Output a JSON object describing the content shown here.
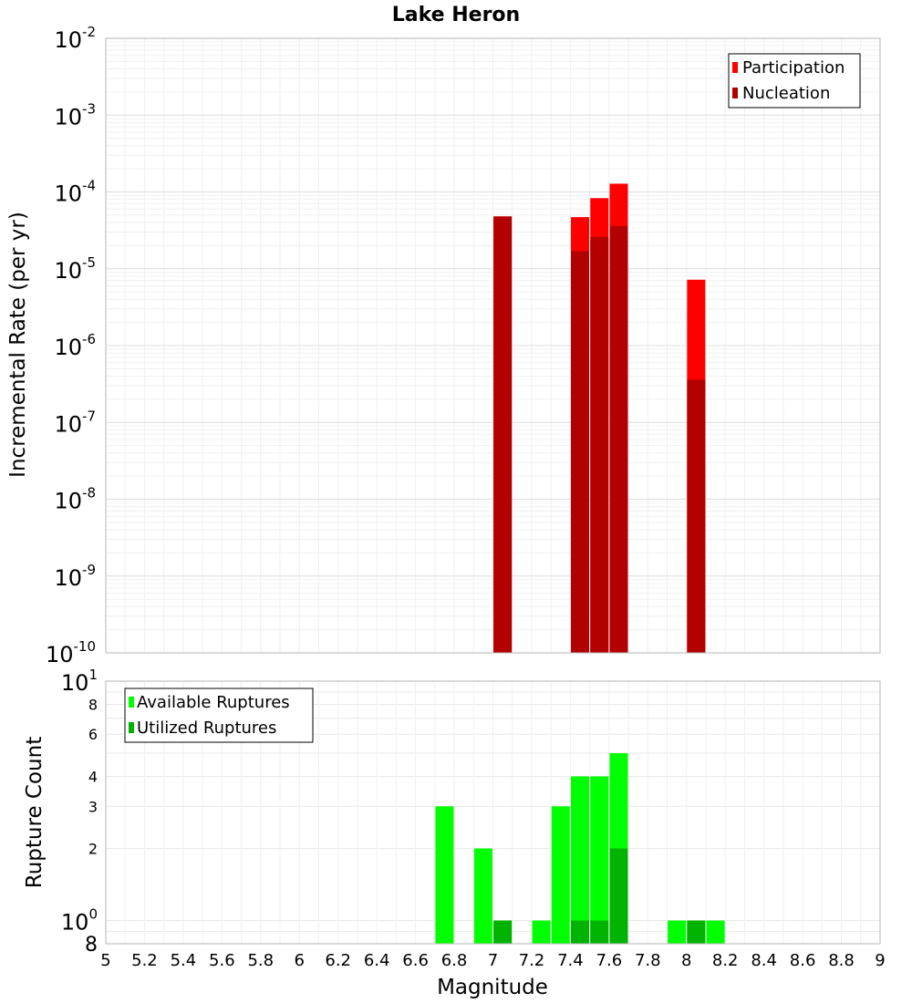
{
  "chart_data": [
    {
      "type": "bar",
      "title": "Lake Heron",
      "xlabel": "Magnitude",
      "ylabel": "Incremental Rate (per yr)",
      "yscale": "log",
      "ylim": [
        1e-10,
        0.01
      ],
      "xlim": [
        5,
        9
      ],
      "grid": true,
      "legend_position": "top-right",
      "y_ticks": [
        {
          "base": "10",
          "exp": "-10",
          "value": 1e-10
        },
        {
          "base": "10",
          "exp": "-9",
          "value": 1e-09
        },
        {
          "base": "10",
          "exp": "-8",
          "value": 1e-08
        },
        {
          "base": "10",
          "exp": "-7",
          "value": 1e-07
        },
        {
          "base": "10",
          "exp": "-6",
          "value": 1e-06
        },
        {
          "base": "10",
          "exp": "-5",
          "value": 1e-05
        },
        {
          "base": "10",
          "exp": "-4",
          "value": 0.0001
        },
        {
          "base": "10",
          "exp": "-3",
          "value": 0.001
        },
        {
          "base": "10",
          "exp": "-2",
          "value": 0.01
        }
      ],
      "series": [
        {
          "name": "Participation",
          "color": "#ff0000",
          "points": [
            {
              "x": 7.05,
              "y": 4.8e-05
            },
            {
              "x": 7.45,
              "y": 4.7e-05
            },
            {
              "x": 7.55,
              "y": 8.3e-05
            },
            {
              "x": 7.65,
              "y": 0.000128
            },
            {
              "x": 8.05,
              "y": 7.2e-06
            }
          ]
        },
        {
          "name": "Nucleation",
          "color": "#b30000",
          "points": [
            {
              "x": 7.05,
              "y": 4.8e-05
            },
            {
              "x": 7.45,
              "y": 1.7e-05
            },
            {
              "x": 7.55,
              "y": 2.6e-05
            },
            {
              "x": 7.65,
              "y": 3.6e-05
            },
            {
              "x": 8.05,
              "y": 3.6e-07
            }
          ]
        }
      ]
    },
    {
      "type": "bar",
      "title": "",
      "xlabel": "Magnitude",
      "ylabel": "Rupture Count",
      "yscale": "log",
      "ylim": [
        0.8,
        10
      ],
      "xlim": [
        5,
        9
      ],
      "grid": true,
      "legend_position": "top-left",
      "x_ticks": [
        "5",
        "5.2",
        "5.4",
        "5.6",
        "5.8",
        "6",
        "6.2",
        "6.4",
        "6.6",
        "6.8",
        "7",
        "7.2",
        "7.4",
        "7.6",
        "7.8",
        "8",
        "8.2",
        "8.4",
        "8.6",
        "8.8",
        "9"
      ],
      "y_ticks_minor": [
        {
          "label": "2",
          "value": 2
        },
        {
          "label": "3",
          "value": 3
        },
        {
          "label": "4",
          "value": 4
        },
        {
          "label": "6",
          "value": 6
        },
        {
          "label": "8",
          "value": 8
        }
      ],
      "y_ticks_major": [
        {
          "base": "10",
          "exp": "0",
          "value": 1
        },
        {
          "base": "10",
          "exp": "1",
          "value": 10
        }
      ],
      "y_tick_bottom": {
        "label": "8",
        "value": 0.8
      },
      "series": [
        {
          "name": "Available Ruptures",
          "color": "#00ff00",
          "points": [
            {
              "x": 6.75,
              "y": 3
            },
            {
              "x": 6.95,
              "y": 2
            },
            {
              "x": 7.05,
              "y": 1
            },
            {
              "x": 7.25,
              "y": 1
            },
            {
              "x": 7.35,
              "y": 3
            },
            {
              "x": 7.45,
              "y": 4
            },
            {
              "x": 7.55,
              "y": 4
            },
            {
              "x": 7.65,
              "y": 5
            },
            {
              "x": 7.95,
              "y": 1
            },
            {
              "x": 8.05,
              "y": 1
            },
            {
              "x": 8.15,
              "y": 1
            }
          ]
        },
        {
          "name": "Utilized Ruptures",
          "color": "#00b300",
          "points": [
            {
              "x": 7.05,
              "y": 1
            },
            {
              "x": 7.45,
              "y": 1
            },
            {
              "x": 7.55,
              "y": 1
            },
            {
              "x": 7.65,
              "y": 2
            },
            {
              "x": 8.05,
              "y": 1
            }
          ]
        }
      ]
    }
  ]
}
